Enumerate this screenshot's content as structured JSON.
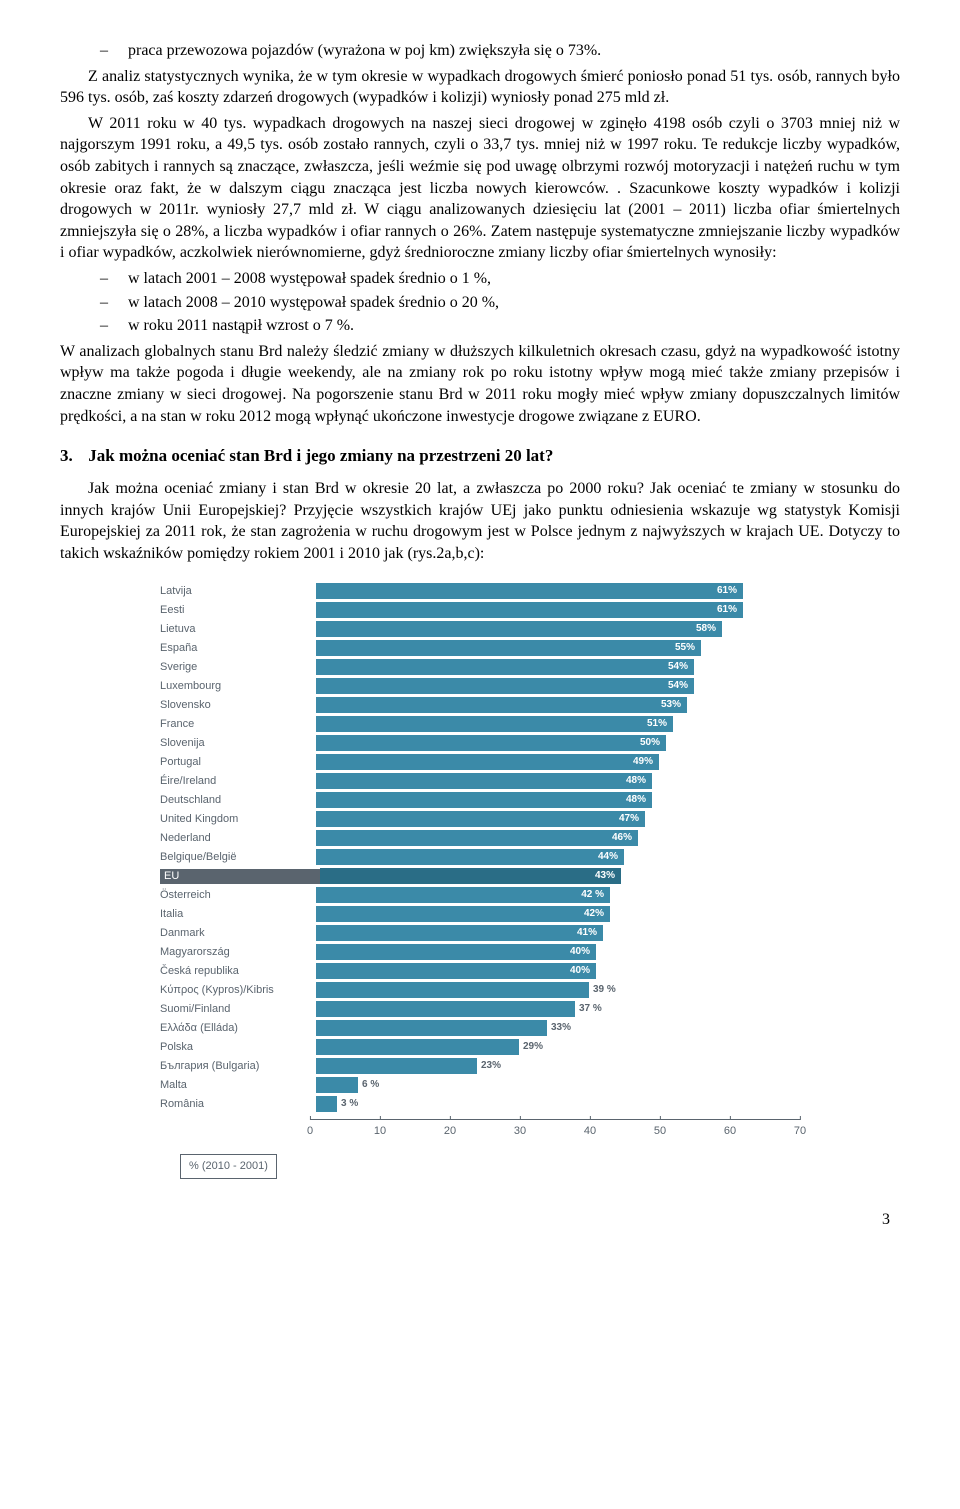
{
  "bullets_top": [
    "praca przewozowa pojazdów (wyrażona w poj km) zwiększyła się o 73%."
  ],
  "para1": "Z analiz statystycznych wynika, że w tym okresie w wypadkach drogowych śmierć poniosło ponad 51 tys. osób,  rannych było 596 tys. osób, zaś koszty zdarzeń drogowych (wypadków i kolizji) wyniosły ponad 275 mld zł.",
  "para2": "W 2011 roku w 40 tys. wypadkach drogowych na naszej sieci drogowej w zginęło 4198 osób czyli o 3703 mniej niż w najgorszym 1991 roku, a 49,5 tys. osób zostało rannych, czyli o 33,7 tys. mniej niż w 1997 roku. Te redukcje liczby wypadków, osób zabitych i rannych są znaczące, zwłaszcza, jeśli weźmie się pod uwagę olbrzymi rozwój motoryzacji i natężeń ruchu w tym okresie oraz fakt, że w dalszym ciągu znacząca jest liczba nowych kierowców. . Szacunkowe koszty wypadków i kolizji drogowych w 2011r.  wyniosły 27,7 mld zł. W ciągu analizowanych dziesięciu lat (2001 – 2011) liczba ofiar śmiertelnych zmniejszyła się o 28%, a liczba wypadków i ofiar rannych o 26%. Zatem następuje systematyczne zmniejszanie liczby wypadków i ofiar wypadków, aczkolwiek nierównomierne, gdyż średnioroczne zmiany liczby ofiar śmiertelnych wynosiły:",
  "bullets_mid": [
    "w latach 2001 – 2008 występował spadek średnio o 1 %,",
    "w latach 2008 – 2010 występował spadek średnio o 20 %,",
    "w roku 2011 nastąpił wzrost o 7 %."
  ],
  "para3": "W analizach globalnych stanu Brd należy śledzić zmiany w dłuższych kilkuletnich  okresach czasu, gdyż na wypadkowość istotny wpływ ma także pogoda i długie weekendy, ale na zmiany rok po roku istotny wpływ mogą mieć także zmiany przepisów i znaczne zmiany w sieci drogowej. Na pogorszenie stanu Brd w 2011 roku mogły mieć wpływ zmiany dopuszczalnych limitów prędkości, a na stan w roku 2012 mogą wpłynąć ukończone inwestycje drogowe związane z EURO.",
  "section3": {
    "num": "3.",
    "title": "Jak można oceniać stan Brd i jego zmiany na przestrzeni 20 lat?"
  },
  "para4": "Jak można oceniać zmiany i stan Brd w okresie 20 lat, a zwłaszcza po 2000 roku? Jak oceniać te zmiany w stosunku do innych krajów Unii Europejskiej? Przyjęcie wszystkich krajów UEj jako punktu odniesienia wskazuje wg statystyk Komisji Europejskiej za 2011 rok, że stan zagrożenia w ruchu drogowym jest w Polsce jednym z najwyższych w krajach UE. Dotyczy to takich wskaźników pomiędzy rokiem 2001 i 2010  jak (rys.2a,b,c):",
  "chart": {
    "type": "bar-horizontal",
    "xlim": [
      0,
      70
    ],
    "xtick_step": 10,
    "bar_color_normal": "#3b8aa8",
    "bar_color_highlight": "#2a6d86",
    "label_color": "#5a646e",
    "label_fontsize": 11,
    "value_fontsize": 10,
    "background": "#ffffff",
    "legend": "% (2010 - 2001)",
    "rows": [
      {
        "label": "Latvija",
        "value": 61,
        "display": "61%",
        "inside": true
      },
      {
        "label": "Eesti",
        "value": 61,
        "display": "61%",
        "inside": true
      },
      {
        "label": "Lietuva",
        "value": 58,
        "display": "58%",
        "inside": true
      },
      {
        "label": "España",
        "value": 55,
        "display": "55%",
        "inside": true
      },
      {
        "label": "Sverige",
        "value": 54,
        "display": "54%",
        "inside": true
      },
      {
        "label": "Luxembourg",
        "value": 54,
        "display": "54%",
        "inside": true
      },
      {
        "label": "Slovensko",
        "value": 53,
        "display": "53%",
        "inside": true
      },
      {
        "label": "France",
        "value": 51,
        "display": "51%",
        "inside": true
      },
      {
        "label": "Slovenija",
        "value": 50,
        "display": "50%",
        "inside": true
      },
      {
        "label": "Portugal",
        "value": 49,
        "display": "49%",
        "inside": true
      },
      {
        "label": "Éire/Ireland",
        "value": 48,
        "display": "48%",
        "inside": true
      },
      {
        "label": "Deutschland",
        "value": 48,
        "display": "48%",
        "inside": true
      },
      {
        "label": "United Kingdom",
        "value": 47,
        "display": "47%",
        "inside": true
      },
      {
        "label": "Nederland",
        "value": 46,
        "display": "46%",
        "inside": true
      },
      {
        "label": "Belgique/België",
        "value": 44,
        "display": "44%",
        "inside": true
      },
      {
        "label": "EU",
        "value": 43,
        "display": "43%",
        "inside": true,
        "highlight": true
      },
      {
        "label": "Österreich",
        "value": 42,
        "display": "42 %",
        "inside": true
      },
      {
        "label": "Italia",
        "value": 42,
        "display": "42%",
        "inside": true
      },
      {
        "label": "Danmark",
        "value": 41,
        "display": "41%",
        "inside": true
      },
      {
        "label": "Magyarország",
        "value": 40,
        "display": "40%",
        "inside": true
      },
      {
        "label": "Česká republika",
        "value": 40,
        "display": "40%",
        "inside": true
      },
      {
        "label": "Κύπρος (Kypros)/Kibris",
        "value": 39,
        "display": "39 %",
        "inside": false
      },
      {
        "label": "Suomi/Finland",
        "value": 37,
        "display": "37 %",
        "inside": false
      },
      {
        "label": "Ελλάδα (Elláda)",
        "value": 33,
        "display": "33%",
        "inside": false
      },
      {
        "label": "Polska",
        "value": 29,
        "display": "29%",
        "inside": false
      },
      {
        "label": "България (Bulgaria)",
        "value": 23,
        "display": "23%",
        "inside": false
      },
      {
        "label": "Malta",
        "value": 6,
        "display": "6 %",
        "inside": false
      },
      {
        "label": "România",
        "value": 3,
        "display": "3 %",
        "inside": false
      }
    ]
  },
  "page_number": "3"
}
